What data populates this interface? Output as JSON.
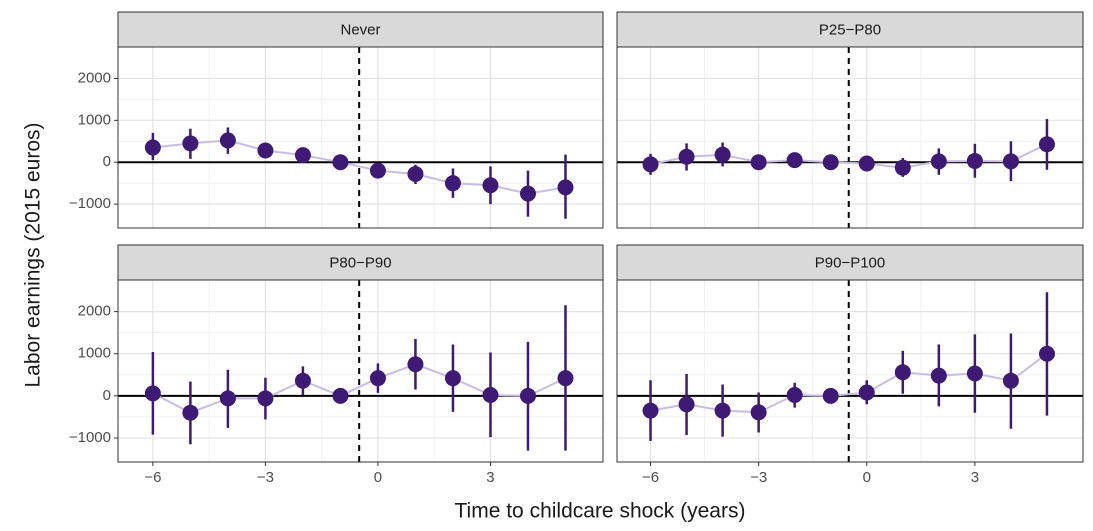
{
  "x_label": "Time to childcare shock (years)",
  "y_label": "Labor earnings (2015 euros)",
  "chart_data": [
    {
      "type": "pointrange",
      "title": "Never",
      "color": "#3f1a75",
      "line_color": "#c8bde0",
      "x": [
        -6,
        -5,
        -4,
        -3,
        -2,
        -1,
        0,
        1,
        2,
        3,
        4,
        5
      ],
      "values": [
        350,
        450,
        520,
        280,
        170,
        0,
        -200,
        -280,
        -500,
        -550,
        -750,
        -600
      ],
      "lower": [
        50,
        80,
        200,
        100,
        50,
        0,
        -350,
        -520,
        -850,
        -1000,
        -1300,
        -1350
      ],
      "upper": [
        700,
        800,
        830,
        450,
        280,
        0,
        -50,
        -60,
        -150,
        -100,
        -200,
        180
      ],
      "xlim": [
        -6.93,
        6.0
      ],
      "ylim": [
        -1570,
        2750
      ],
      "xticks": [
        {
          "value": -6,
          "label": "−6"
        },
        {
          "value": -3,
          "label": "−3"
        },
        0,
        3
      ],
      "yticks": [
        {
          "value": -1000,
          "label": "−1000"
        },
        0,
        1000,
        2000
      ],
      "vline": -0.5,
      "hline": 0,
      "grid": true
    },
    {
      "type": "pointrange",
      "title": "P25−P80",
      "color": "#3f1a75",
      "line_color": "#c8bde0",
      "x": [
        -6,
        -5,
        -4,
        -3,
        -2,
        -1,
        0,
        1,
        2,
        3,
        4,
        5
      ],
      "values": [
        -50,
        130,
        180,
        0,
        50,
        0,
        -30,
        -130,
        20,
        30,
        20,
        430
      ],
      "lower": [
        -300,
        -200,
        -100,
        -100,
        -100,
        0,
        -200,
        -350,
        -300,
        -370,
        -450,
        -180
      ],
      "upper": [
        200,
        450,
        470,
        100,
        150,
        0,
        130,
        100,
        330,
        440,
        500,
        1030
      ],
      "xlim": [
        -6.93,
        6.0
      ],
      "ylim": [
        -1570,
        2750
      ],
      "xticks": [
        {
          "value": -6,
          "label": "−6"
        },
        {
          "value": -3,
          "label": "−3"
        },
        0,
        3
      ],
      "yticks": [
        {
          "value": -1000,
          "label": "−1000"
        },
        0,
        1000,
        2000
      ],
      "vline": -0.5,
      "hline": 0,
      "grid": true
    },
    {
      "type": "pointrange",
      "title": "P80−P90",
      "color": "#3f1a75",
      "line_color": "#c8bde0",
      "x": [
        -6,
        -5,
        -4,
        -3,
        -2,
        -1,
        0,
        1,
        2,
        3,
        4,
        5
      ],
      "values": [
        60,
        -400,
        -60,
        -60,
        360,
        0,
        420,
        750,
        420,
        20,
        0,
        420
      ],
      "lower": [
        -920,
        -1150,
        -760,
        -560,
        20,
        0,
        70,
        150,
        -380,
        -980,
        -1300,
        -1300
      ],
      "upper": [
        1040,
        340,
        620,
        430,
        700,
        0,
        770,
        1350,
        1220,
        1030,
        1280,
        2150
      ],
      "xlim": [
        -6.93,
        6.0
      ],
      "ylim": [
        -1570,
        2750
      ],
      "xticks": [
        {
          "value": -6,
          "label": "−6"
        },
        {
          "value": -3,
          "label": "−3"
        },
        0,
        3
      ],
      "yticks": [
        {
          "value": -1000,
          "label": "−1000"
        },
        0,
        1000,
        2000
      ],
      "vline": -0.5,
      "hline": 0,
      "grid": true
    },
    {
      "type": "pointrange",
      "title": "P90−P100",
      "color": "#3f1a75",
      "line_color": "#c8bde0",
      "x": [
        -6,
        -5,
        -4,
        -3,
        -2,
        -1,
        0,
        1,
        2,
        3,
        4,
        5
      ],
      "values": [
        -350,
        -200,
        -350,
        -390,
        20,
        0,
        80,
        560,
        480,
        530,
        360,
        1000
      ],
      "lower": [
        -1070,
        -930,
        -970,
        -870,
        -280,
        0,
        -200,
        50,
        -250,
        -400,
        -780,
        -470
      ],
      "upper": [
        370,
        520,
        270,
        80,
        310,
        0,
        370,
        1070,
        1220,
        1460,
        1480,
        2460
      ],
      "xlim": [
        -6.93,
        6.0
      ],
      "ylim": [
        -1570,
        2750
      ],
      "xticks": [
        {
          "value": -6,
          "label": "−6"
        },
        {
          "value": -3,
          "label": "−3"
        },
        0,
        3
      ],
      "yticks": [
        {
          "value": -1000,
          "label": "−1000"
        },
        0,
        1000,
        2000
      ],
      "vline": -0.5,
      "hline": 0,
      "grid": true
    }
  ]
}
